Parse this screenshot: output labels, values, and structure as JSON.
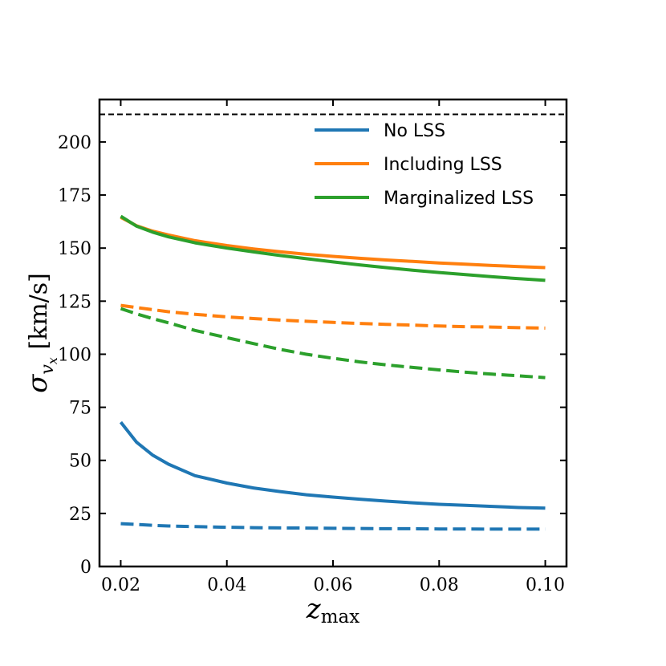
{
  "chart_data": {
    "type": "line",
    "xlabel": "z_max",
    "ylabel": "σ_{v_x} [km/s]",
    "xlim": [
      0.016,
      0.104
    ],
    "ylim": [
      0,
      220
    ],
    "xticks": [
      0.02,
      0.04,
      0.06,
      0.08,
      0.1
    ],
    "xtick_labels": [
      "0.02",
      "0.04",
      "0.06",
      "0.08",
      "0.10"
    ],
    "yticks": [
      0,
      25,
      50,
      75,
      100,
      125,
      150,
      175,
      200
    ],
    "ytick_labels": [
      "0",
      "25",
      "50",
      "75",
      "100",
      "125",
      "150",
      "175",
      "200"
    ],
    "reference_line": {
      "y": 213,
      "style": "dashed",
      "color": "#000000"
    },
    "legend": {
      "placement": "top-right",
      "entries": [
        {
          "label": "No LSS",
          "color": "#1f77b4"
        },
        {
          "label": "Including LSS",
          "color": "#ff7f0e"
        },
        {
          "label": "Marginalized LSS",
          "color": "#2ca02c"
        }
      ]
    },
    "x": [
      0.02,
      0.023,
      0.026,
      0.029,
      0.034,
      0.04,
      0.045,
      0.05,
      0.055,
      0.06,
      0.065,
      0.07,
      0.075,
      0.08,
      0.085,
      0.09,
      0.095,
      0.1
    ],
    "series": [
      {
        "name": "No LSS",
        "color": "#1f77b4",
        "style": "solid",
        "values": [
          68,
          58.5,
          52.5,
          48.2,
          42.8,
          39.3,
          37,
          35.3,
          33.8,
          32.7,
          31.7,
          30.8,
          30,
          29.3,
          28.8,
          28.3,
          27.8,
          27.5
        ]
      },
      {
        "name": "No LSS",
        "color": "#1f77b4",
        "style": "dashed",
        "values": [
          20.2,
          19.8,
          19.4,
          19.1,
          18.8,
          18.5,
          18.3,
          18.2,
          18.1,
          18,
          17.9,
          17.8,
          17.8,
          17.7,
          17.7,
          17.6,
          17.6,
          17.6
        ]
      },
      {
        "name": "Including LSS",
        "color": "#ff7f0e",
        "style": "solid",
        "values": [
          164.5,
          160.5,
          158,
          156.2,
          153.5,
          151.2,
          149.6,
          148.3,
          147.1,
          146.1,
          145.2,
          144.4,
          143.7,
          143,
          142.4,
          141.8,
          141.3,
          140.8
        ]
      },
      {
        "name": "Including LSS",
        "color": "#ff7f0e",
        "style": "dashed",
        "values": [
          123,
          122,
          121,
          120,
          118.8,
          117.6,
          116.8,
          116.1,
          115.5,
          115,
          114.5,
          114.1,
          113.7,
          113.3,
          113,
          112.8,
          112.5,
          112.3
        ]
      },
      {
        "name": "Marginalized LSS",
        "color": "#2ca02c",
        "style": "solid",
        "values": [
          165,
          160.3,
          157.5,
          155.3,
          152.5,
          150,
          148.2,
          146.5,
          145,
          143.5,
          142.1,
          140.8,
          139.6,
          138.5,
          137.5,
          136.5,
          135.6,
          134.8
        ]
      },
      {
        "name": "Marginalized LSS",
        "color": "#2ca02c",
        "style": "dashed",
        "values": [
          121.5,
          119,
          116.8,
          114.8,
          111.2,
          107.8,
          105,
          102.3,
          100,
          98.1,
          96.4,
          95,
          93.8,
          92.6,
          91.5,
          90.6,
          89.8,
          89
        ]
      }
    ]
  }
}
